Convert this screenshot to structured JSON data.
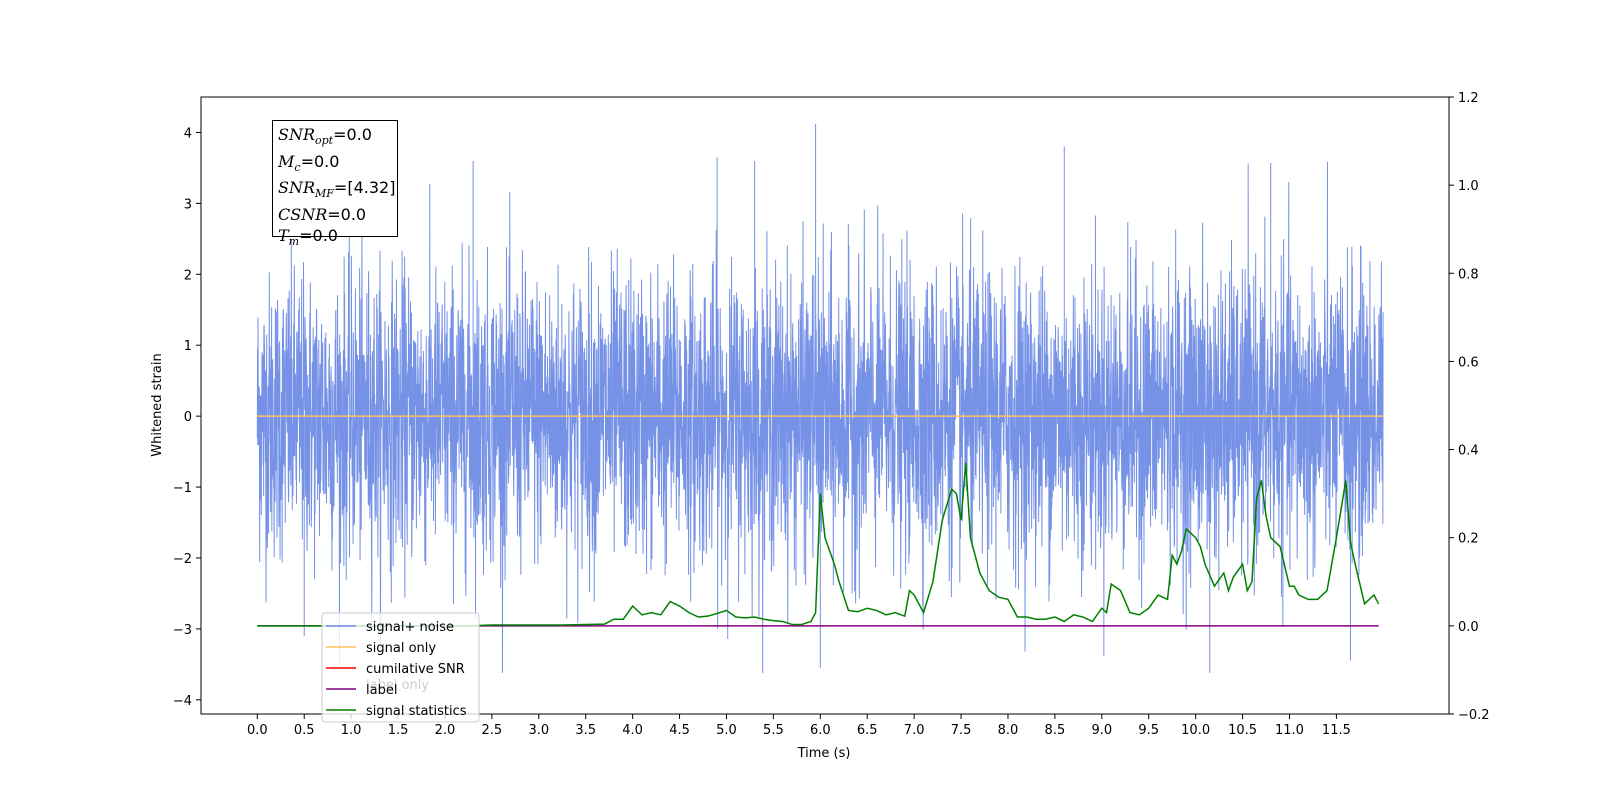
{
  "chart_data": {
    "type": "line",
    "title": "",
    "xlabel": "Time (s)",
    "ylabel": "Whitened strain",
    "xlim": [
      -0.6,
      12.7
    ],
    "ylim": [
      -4.2,
      4.5
    ],
    "y2lim": [
      -0.2,
      1.2
    ],
    "xticks": [
      "0.0",
      "0.5",
      "1.0",
      "1.5",
      "2.0",
      "2.5",
      "3.0",
      "3.5",
      "4.0",
      "4.5",
      "5.0",
      "5.5",
      "6.0",
      "6.5",
      "7.0",
      "7.5",
      "8.0",
      "8.5",
      "9.0",
      "9.5",
      "10.0",
      "10.5",
      "11.0",
      "11.5"
    ],
    "yticks": [
      "4",
      "3",
      "2",
      "1",
      "0",
      "−1",
      "−2",
      "−3",
      "−4"
    ],
    "y2ticks": [
      "1.2",
      "1.0",
      "0.8",
      "0.6",
      "0.4",
      "0.2",
      "0.0",
      "−0.2"
    ],
    "legend_position": "lower-left",
    "legend": [
      {
        "label": "signal+ noise",
        "color": "#6f8ce6"
      },
      {
        "label": "signal only",
        "color": "#ffbf66"
      },
      {
        "label": "cumilative SNR",
        "color": "#ff0000"
      },
      {
        "label": "label",
        "color": "#800080"
      },
      {
        "label": "signal statistics",
        "color": "#008000"
      }
    ],
    "hidden_legend_text": "label only",
    "series": [
      {
        "name": "signal+ noise",
        "axis": "left",
        "color": "#6f8ce6",
        "x_range": [
          0.0,
          12.0
        ],
        "std": 1.0,
        "max": 4.12,
        "min": -3.62,
        "peaks": [
          [
            5.95,
            4.12
          ],
          [
            8.6,
            3.8
          ],
          [
            2.3,
            3.6
          ],
          [
            4.9,
            3.65
          ],
          [
            5.3,
            3.6
          ],
          [
            10.8,
            3.57
          ],
          [
            6.0,
            -3.55
          ],
          [
            10.15,
            -3.62
          ],
          [
            0.5,
            -3.1
          ],
          [
            11.65,
            -3.45
          ]
        ]
      },
      {
        "name": "signal only",
        "axis": "left",
        "color": "#ffbf66",
        "x": [
          0.0,
          12.0
        ],
        "y": [
          0.0,
          0.0
        ]
      },
      {
        "name": "label",
        "axis": "right",
        "color": "#800080",
        "x": [
          0.0,
          11.95
        ],
        "y": [
          0.0,
          0.0
        ]
      },
      {
        "name": "signal statistics",
        "axis": "right",
        "color": "#008000",
        "x": [
          0.0,
          0.25,
          0.5,
          0.75,
          1.0,
          1.25,
          1.5,
          1.75,
          2.0,
          2.25,
          2.5,
          2.75,
          3.0,
          3.25,
          3.5,
          3.7,
          3.8,
          3.9,
          4.0,
          4.1,
          4.2,
          4.3,
          4.4,
          4.5,
          4.6,
          4.7,
          4.8,
          4.9,
          5.0,
          5.1,
          5.2,
          5.3,
          5.4,
          5.5,
          5.6,
          5.7,
          5.8,
          5.9,
          5.95,
          6.0,
          6.05,
          6.1,
          6.15,
          6.2,
          6.3,
          6.4,
          6.5,
          6.6,
          6.7,
          6.8,
          6.9,
          6.95,
          7.0,
          7.1,
          7.2,
          7.3,
          7.4,
          7.45,
          7.5,
          7.55,
          7.6,
          7.7,
          7.8,
          7.9,
          8.0,
          8.1,
          8.2,
          8.3,
          8.4,
          8.5,
          8.6,
          8.7,
          8.8,
          8.9,
          9.0,
          9.05,
          9.1,
          9.2,
          9.3,
          9.4,
          9.5,
          9.6,
          9.7,
          9.75,
          9.8,
          9.85,
          9.9,
          10.0,
          10.05,
          10.1,
          10.2,
          10.3,
          10.35,
          10.4,
          10.5,
          10.55,
          10.6,
          10.65,
          10.7,
          10.75,
          10.8,
          10.9,
          11.0,
          11.05,
          11.1,
          11.2,
          11.3,
          11.4,
          11.5,
          11.6,
          11.65,
          11.7,
          11.8,
          11.9,
          11.95
        ],
        "y": [
          0.0,
          0.0,
          0.0,
          0.0,
          0.0,
          0.0,
          0.0,
          0.0,
          0.0,
          0.0,
          0.002,
          0.002,
          0.002,
          0.002,
          0.003,
          0.004,
          0.015,
          0.015,
          0.045,
          0.025,
          0.03,
          0.025,
          0.055,
          0.045,
          0.03,
          0.02,
          0.022,
          0.028,
          0.035,
          0.02,
          0.018,
          0.02,
          0.015,
          0.012,
          0.01,
          0.003,
          0.003,
          0.01,
          0.03,
          0.3,
          0.2,
          0.17,
          0.14,
          0.1,
          0.035,
          0.032,
          0.04,
          0.035,
          0.025,
          0.03,
          0.022,
          0.08,
          0.07,
          0.03,
          0.1,
          0.24,
          0.31,
          0.3,
          0.24,
          0.37,
          0.2,
          0.12,
          0.08,
          0.065,
          0.06,
          0.02,
          0.02,
          0.015,
          0.015,
          0.02,
          0.01,
          0.025,
          0.02,
          0.01,
          0.04,
          0.03,
          0.095,
          0.08,
          0.03,
          0.025,
          0.04,
          0.07,
          0.06,
          0.16,
          0.14,
          0.17,
          0.22,
          0.2,
          0.18,
          0.14,
          0.09,
          0.12,
          0.08,
          0.11,
          0.14,
          0.08,
          0.1,
          0.29,
          0.33,
          0.25,
          0.2,
          0.18,
          0.09,
          0.09,
          0.07,
          0.06,
          0.06,
          0.08,
          0.2,
          0.33,
          0.19,
          0.14,
          0.05,
          0.07,
          0.05
        ]
      }
    ]
  },
  "stats_box": {
    "snr_opt_sym": "SNR",
    "snr_opt_sub": "opt",
    "snr_opt_val": "=0.0",
    "mc_sym": "M",
    "mc_sub": "c",
    "mc_val": "=0.0",
    "snr_mf_sym": "SNR",
    "snr_mf_sub": "MF",
    "snr_mf_val": "=[4.32]",
    "csnr_sym": "CSNR",
    "csnr_val": "=0.0",
    "tm_sym": "T",
    "tm_sub": "m",
    "tm_val": "=0.0"
  }
}
